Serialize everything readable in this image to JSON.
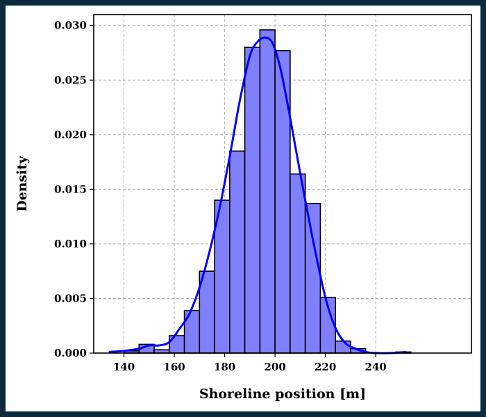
{
  "chart_data": {
    "type": "bar",
    "subtype": "histogram-with-kde",
    "xlabel": "Shoreline position [m]",
    "ylabel": "Density",
    "xlim": [
      128,
      278
    ],
    "ylim": [
      0,
      0.031
    ],
    "xticks": [
      140,
      160,
      180,
      200,
      220,
      240
    ],
    "xtick_labels": [
      "140",
      "160",
      "180",
      "200",
      "220",
      "240"
    ],
    "yticks": [
      0.0,
      0.005,
      0.01,
      0.015,
      0.02,
      0.025,
      0.03
    ],
    "ytick_labels": [
      "0.000",
      "0.005",
      "0.010",
      "0.015",
      "0.020",
      "0.025",
      "0.030"
    ],
    "grid": true,
    "bar_color": "#8080ff",
    "bar_edge_color": "#000000",
    "kde_color": "#0000ff",
    "bins": [
      {
        "x0": 134,
        "x1": 140,
        "density": 0.0
      },
      {
        "x0": 140,
        "x1": 146,
        "density": 0.0002
      },
      {
        "x0": 146,
        "x1": 152,
        "density": 0.0008
      },
      {
        "x0": 152,
        "x1": 158,
        "density": 0.0003
      },
      {
        "x0": 158,
        "x1": 164,
        "density": 0.0016
      },
      {
        "x0": 164,
        "x1": 170,
        "density": 0.0039
      },
      {
        "x0": 170,
        "x1": 176,
        "density": 0.0075
      },
      {
        "x0": 176,
        "x1": 182,
        "density": 0.014
      },
      {
        "x0": 182,
        "x1": 188,
        "density": 0.0185
      },
      {
        "x0": 188,
        "x1": 194,
        "density": 0.028
      },
      {
        "x0": 194,
        "x1": 200,
        "density": 0.0296
      },
      {
        "x0": 200,
        "x1": 206,
        "density": 0.0277
      },
      {
        "x0": 206,
        "x1": 212,
        "density": 0.0164
      },
      {
        "x0": 212,
        "x1": 218,
        "density": 0.0137
      },
      {
        "x0": 218,
        "x1": 224,
        "density": 0.0051
      },
      {
        "x0": 224,
        "x1": 230,
        "density": 0.0011
      },
      {
        "x0": 230,
        "x1": 236,
        "density": 0.0004
      },
      {
        "x0": 236,
        "x1": 242,
        "density": 0.0
      },
      {
        "x0": 242,
        "x1": 248,
        "density": 0.0
      },
      {
        "x0": 248,
        "x1": 254,
        "density": 0.0001
      }
    ],
    "kde": {
      "x": [
        134,
        140,
        146,
        150,
        154,
        158,
        162,
        166,
        170,
        174,
        178,
        182,
        186,
        190,
        193,
        196,
        199,
        202,
        205,
        208,
        212,
        216,
        220,
        224,
        228,
        232,
        236,
        240,
        246,
        252
      ],
      "y": [
        0.0001,
        0.0002,
        0.0004,
        0.0007,
        0.0007,
        0.001,
        0.0022,
        0.0036,
        0.006,
        0.0093,
        0.0133,
        0.018,
        0.0231,
        0.0272,
        0.0285,
        0.0289,
        0.0284,
        0.0262,
        0.0228,
        0.019,
        0.014,
        0.0093,
        0.0051,
        0.0023,
        0.0009,
        0.0004,
        0.0001,
        0.0,
        0.0,
        0.0001
      ]
    }
  }
}
